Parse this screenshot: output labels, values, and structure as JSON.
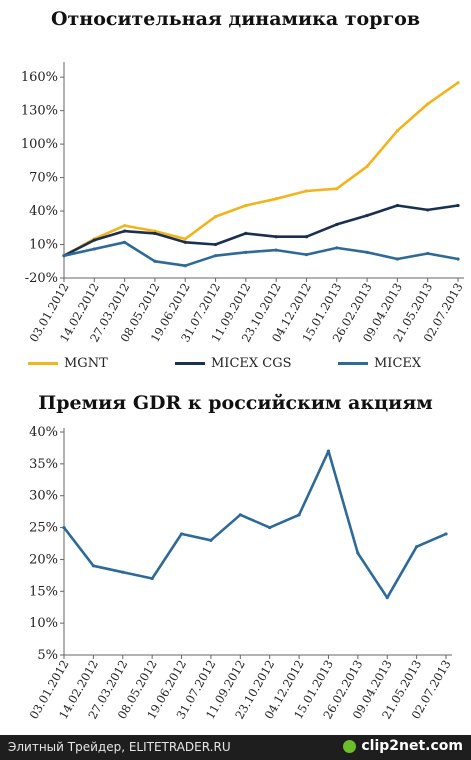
{
  "chart_data": [
    {
      "type": "line",
      "title": "Относительная динамика торгов",
      "yticks": [
        "160%",
        "130%",
        "100%",
        "70%",
        "40%",
        "10%",
        "-20%"
      ],
      "ytick_values": [
        160,
        130,
        100,
        70,
        40,
        10,
        -20
      ],
      "ylim": [
        -20,
        170
      ],
      "categories": [
        "03.01.2012",
        "14.02.2012",
        "27.03.2012",
        "08.05.2012",
        "19.06.2012",
        "31.07.2012",
        "11.09.2012",
        "23.10.2012",
        "04.12.2012",
        "15.01.2013",
        "26.02.2013",
        "09.04.2013",
        "21.05.2013",
        "02.07.2013"
      ],
      "series": [
        {
          "name": "MGNT",
          "color": "#f2b41c",
          "values": [
            0,
            15,
            27,
            22,
            15,
            35,
            45,
            51,
            58,
            60,
            80,
            112,
            136,
            155
          ]
        },
        {
          "name": "MICEX CGS",
          "color": "#1b2f4e",
          "values": [
            0,
            14,
            22,
            20,
            12,
            10,
            20,
            17,
            17,
            28,
            36,
            45,
            41,
            45
          ]
        },
        {
          "name": "MICEX",
          "color": "#2e6a98",
          "values": [
            0,
            6,
            12,
            -5,
            -9,
            0,
            3,
            5,
            1,
            7,
            3,
            -3,
            2,
            -3
          ]
        }
      ],
      "legend_position": "bottom",
      "grid": false
    },
    {
      "type": "line",
      "title": "Премия GDR к российским акциям",
      "yticks": [
        "40%",
        "35%",
        "30%",
        "25%",
        "20%",
        "15%",
        "10%",
        "5%"
      ],
      "ytick_values": [
        40,
        35,
        30,
        25,
        20,
        15,
        10,
        5
      ],
      "ylim": [
        5,
        40
      ],
      "categories": [
        "03.01.2012",
        "14.02.2012",
        "27.03.2012",
        "08.05.2012",
        "19.06.2012",
        "31.07.2012",
        "11.09.2012",
        "23.10.2012",
        "04.12.2012",
        "15.01.2013",
        "26.02.2013",
        "09.04.2013",
        "21.05.2013",
        "02.07.2013"
      ],
      "series": [
        {
          "name": "",
          "color": "#2e6a98",
          "values": [
            25,
            19,
            18,
            17,
            24,
            23,
            27,
            25,
            27,
            37,
            21,
            14,
            22,
            24
          ]
        }
      ],
      "legend_position": "none",
      "grid": false
    }
  ],
  "footer": {
    "left": "Элитный Трейдер, ELITETRADER.RU",
    "right": "clip2net.com"
  },
  "icons": {
    "footer_logo": "clip2net-logo-icon"
  }
}
